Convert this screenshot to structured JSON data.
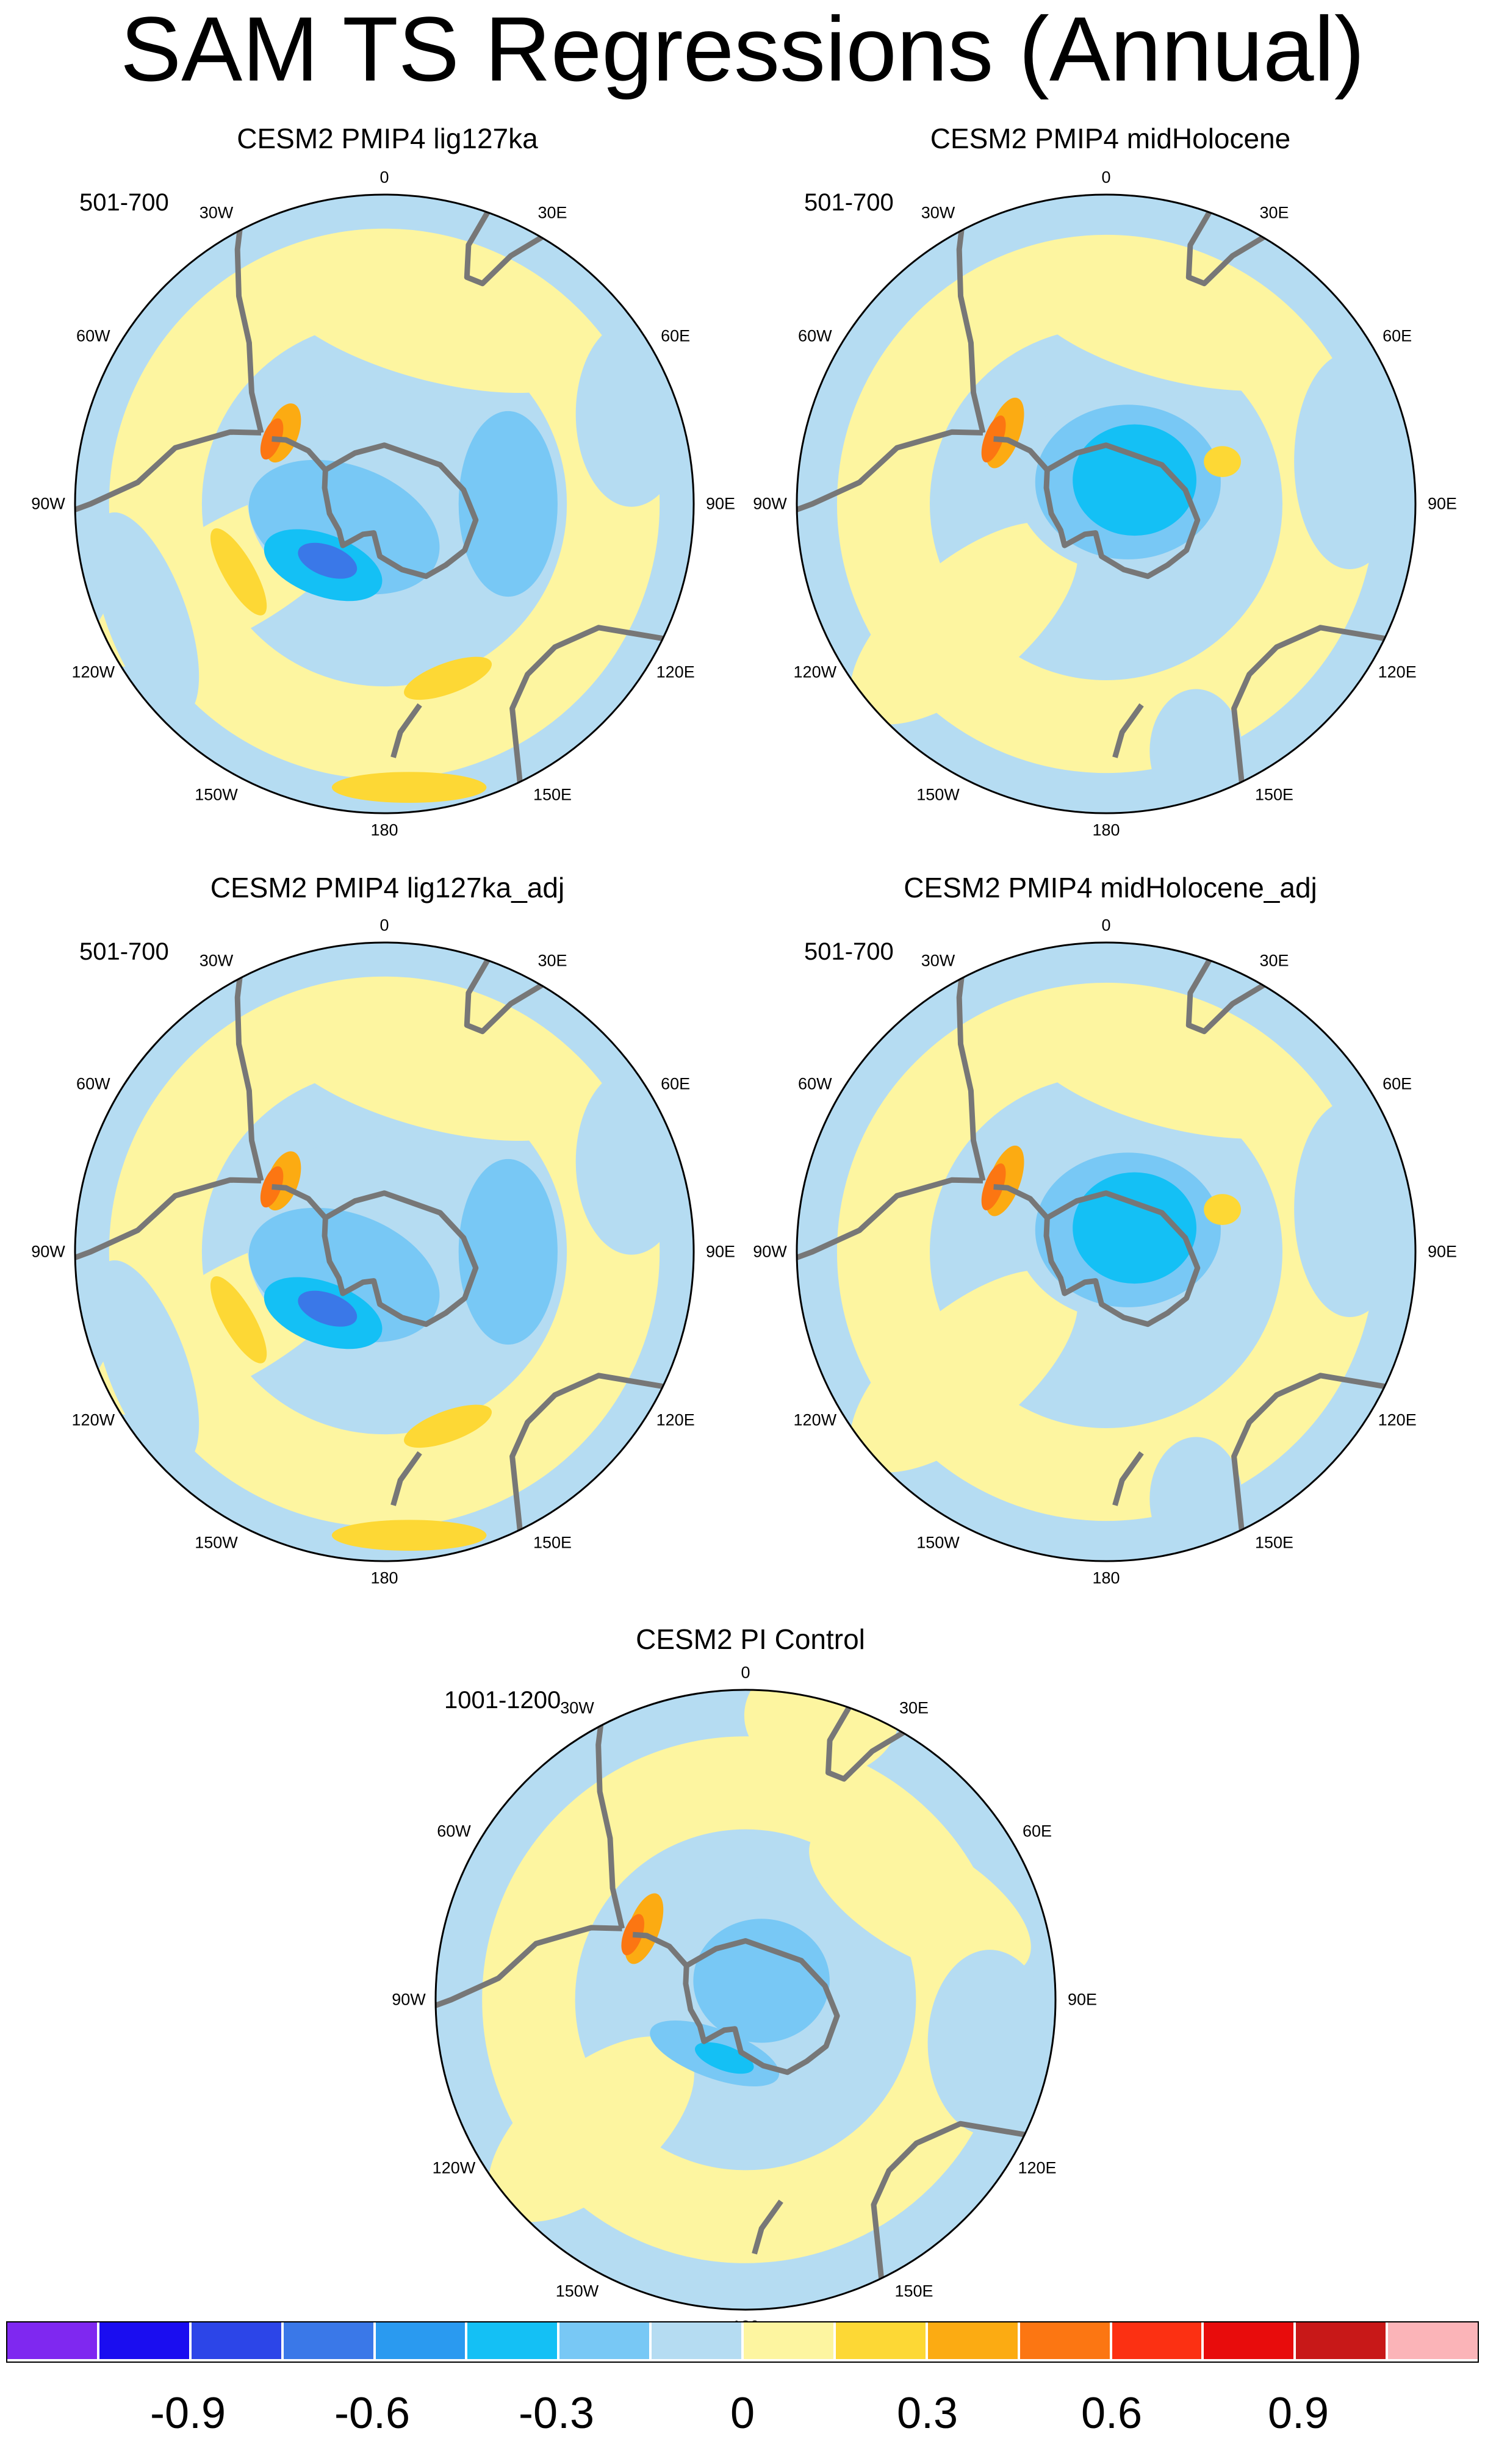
{
  "title": "SAM TS Regressions (Annual)",
  "panels": [
    {
      "title": "CESM2 PMIP4 lig127ka",
      "period": "501-700"
    },
    {
      "title": "CESM2 PMIP4 midHolocene",
      "period": "501-700"
    },
    {
      "title": "CESM2 PMIP4 lig127ka_adj",
      "period": "501-700"
    },
    {
      "title": "CESM2 PMIP4 midHolocene_adj",
      "period": "501-700"
    },
    {
      "title": "CESM2 PI Control",
      "period": "1001-1200"
    }
  ],
  "longitude_labels": {
    "lon_0": "0",
    "lon_30e": "30E",
    "lon_60e": "60E",
    "lon_90e": "90E",
    "lon_120e": "120E",
    "lon_150e": "150E",
    "lon_180": "180",
    "lon_150w": "150W",
    "lon_120w": "120W",
    "lon_90w": "90W",
    "lon_60w": "60W",
    "lon_30w": "30W"
  },
  "colorbar": {
    "colors": [
      "#7f28f0",
      "#1a0df0",
      "#2c45e8",
      "#3a78e8",
      "#2a9af0",
      "#14c0f5",
      "#78c8f5",
      "#b5dcf2",
      "#fdf5a0",
      "#fdd835",
      "#fcab12",
      "#fc7612",
      "#fc3012",
      "#e80c0c",
      "#c81818",
      "#fbb4b8"
    ],
    "labels": {
      "m09": "-0.9",
      "m06": "-0.6",
      "m03": "-0.3",
      "zero": "0",
      "p03": "0.3",
      "p06": "0.6",
      "p09": "0.9"
    }
  },
  "legend_colors": {
    "land_outline": "#777777",
    "background_field": "#b5dcf2",
    "positive_field": "#fdf5a0"
  }
}
